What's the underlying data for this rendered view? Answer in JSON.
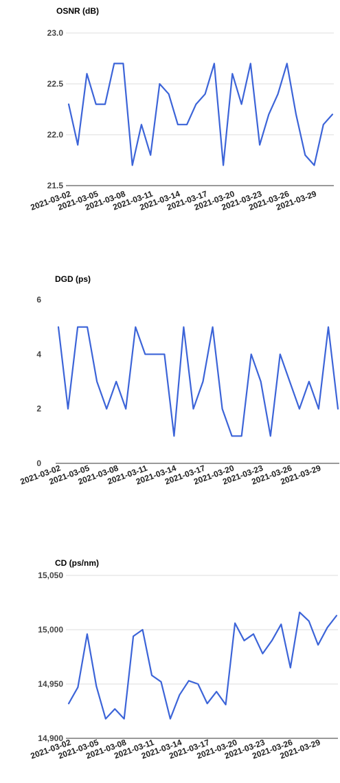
{
  "line_color": "#3c64d8",
  "chart_data": [
    {
      "type": "line",
      "title": "OSNR (dB)",
      "xlabel": "",
      "ylabel": "",
      "ylim": [
        21.5,
        23.0
      ],
      "yticks": [
        "23.0",
        "22.5",
        "22.0",
        "21.5"
      ],
      "ytick_values": [
        23.0,
        22.5,
        22.0,
        21.5
      ],
      "xtick_labels": [
        "2021-03-02",
        "2021-03-05",
        "2021-03-08",
        "2021-03-11",
        "2021-03-14",
        "2021-03-17",
        "2021-03-20",
        "2021-03-23",
        "2021-03-26",
        "2021-03-29"
      ],
      "grid": true,
      "x": [
        "2021-03-02",
        "2021-03-03",
        "2021-03-04",
        "2021-03-05",
        "2021-03-06",
        "2021-03-07",
        "2021-03-08",
        "2021-03-09",
        "2021-03-10",
        "2021-03-11",
        "2021-03-12",
        "2021-03-13",
        "2021-03-14",
        "2021-03-15",
        "2021-03-16",
        "2021-03-17",
        "2021-03-18",
        "2021-03-19",
        "2021-03-20",
        "2021-03-21",
        "2021-03-22",
        "2021-03-23",
        "2021-03-24",
        "2021-03-25",
        "2021-03-26",
        "2021-03-27",
        "2021-03-28",
        "2021-03-29",
        "2021-03-30",
        "2021-03-31"
      ],
      "values": [
        22.3,
        21.9,
        22.6,
        22.3,
        22.3,
        22.7,
        22.7,
        21.7,
        22.1,
        21.8,
        22.5,
        22.4,
        22.1,
        22.1,
        22.3,
        22.4,
        22.7,
        21.7,
        22.6,
        22.3,
        22.7,
        21.9,
        22.2,
        22.4,
        22.7,
        22.2,
        21.8,
        21.7,
        22.1,
        22.2
      ]
    },
    {
      "type": "line",
      "title": "DGD (ps)",
      "xlabel": "",
      "ylabel": "",
      "ylim": [
        0,
        6
      ],
      "yticks": [
        "6",
        "4",
        "2",
        "0"
      ],
      "ytick_values": [
        6,
        4,
        2,
        0
      ],
      "xtick_labels": [
        "2021-03-02",
        "2021-03-05",
        "2021-03-08",
        "2021-03-11",
        "2021-03-14",
        "2021-03-17",
        "2021-03-20",
        "2021-03-23",
        "2021-03-26",
        "2021-03-29"
      ],
      "grid": false,
      "x": [
        "2021-03-02",
        "2021-03-03",
        "2021-03-04",
        "2021-03-05",
        "2021-03-06",
        "2021-03-07",
        "2021-03-08",
        "2021-03-09",
        "2021-03-10",
        "2021-03-11",
        "2021-03-12",
        "2021-03-13",
        "2021-03-14",
        "2021-03-15",
        "2021-03-16",
        "2021-03-17",
        "2021-03-18",
        "2021-03-19",
        "2021-03-20",
        "2021-03-21",
        "2021-03-22",
        "2021-03-23",
        "2021-03-24",
        "2021-03-25",
        "2021-03-26",
        "2021-03-27",
        "2021-03-28",
        "2021-03-29",
        "2021-03-30",
        "2021-03-31"
      ],
      "values": [
        5,
        2,
        5,
        5,
        3,
        2,
        3,
        2,
        5,
        4,
        4,
        4,
        1,
        5,
        2,
        3,
        5,
        2,
        1,
        1,
        4,
        3,
        1,
        4,
        3,
        2,
        3,
        2,
        5,
        2
      ]
    },
    {
      "type": "line",
      "title": "CD (ps/nm)",
      "xlabel": "",
      "ylabel": "",
      "ylim": [
        14900,
        15050
      ],
      "yticks": [
        "15,050",
        "15,000",
        "14,950",
        "14,900"
      ],
      "ytick_values": [
        15050,
        15000,
        14950,
        14900
      ],
      "xtick_labels": [
        "2021-03-02",
        "2021-03-05",
        "2021-03-08",
        "2021-03-11",
        "2021-03-14",
        "2021-03-17",
        "2021-03-20",
        "2021-03-23",
        "2021-03-26",
        "2021-03-29"
      ],
      "grid": true,
      "x": [
        "2021-03-02",
        "2021-03-03",
        "2021-03-04",
        "2021-03-05",
        "2021-03-06",
        "2021-03-07",
        "2021-03-08",
        "2021-03-09",
        "2021-03-10",
        "2021-03-11",
        "2021-03-12",
        "2021-03-13",
        "2021-03-14",
        "2021-03-15",
        "2021-03-16",
        "2021-03-17",
        "2021-03-18",
        "2021-03-19",
        "2021-03-20",
        "2021-03-21",
        "2021-03-22",
        "2021-03-23",
        "2021-03-24",
        "2021-03-25",
        "2021-03-26",
        "2021-03-27",
        "2021-03-28",
        "2021-03-29",
        "2021-03-30",
        "2021-03-31"
      ],
      "values": [
        14932,
        14947,
        14996,
        14948,
        14918,
        14927,
        14918,
        14994,
        15000,
        14958,
        14952,
        14918,
        14940,
        14953,
        14950,
        14932,
        14943,
        14931,
        15006,
        14990,
        14996,
        14978,
        14990,
        15005,
        14965,
        15016,
        15008,
        14986,
        15002,
        15013
      ]
    }
  ]
}
